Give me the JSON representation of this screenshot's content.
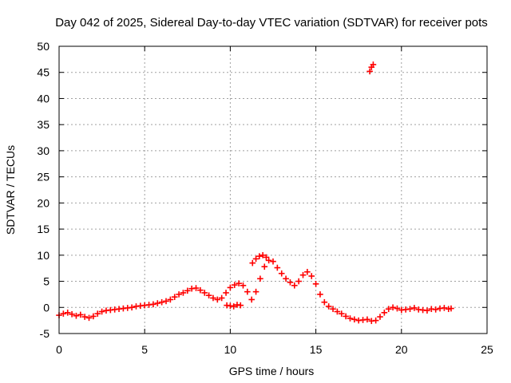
{
  "chart_data": {
    "type": "scatter",
    "title": "Day 042 of 2025, Sidereal Day-to-day VTEC variation (SDTVAR) for receiver pots",
    "xlabel": "GPS time / hours",
    "ylabel": "SDTVAR / TECUs",
    "xlim": [
      0,
      25
    ],
    "ylim": [
      -5,
      50
    ],
    "xticks": [
      0,
      5,
      10,
      15,
      20,
      25
    ],
    "yticks": [
      -5,
      0,
      5,
      10,
      15,
      20,
      25,
      30,
      35,
      40,
      45,
      50
    ],
    "grid": true,
    "point_color": "#ff0000",
    "marker": "plus",
    "series": [
      {
        "name": "SDTVAR",
        "x": [
          0.0,
          0.25,
          0.5,
          0.75,
          1.0,
          1.25,
          1.5,
          1.75,
          2.0,
          2.25,
          2.5,
          2.75,
          3.0,
          3.25,
          3.5,
          3.75,
          4.0,
          4.25,
          4.5,
          4.75,
          5.0,
          5.25,
          5.5,
          5.75,
          6.0,
          6.25,
          6.5,
          6.75,
          7.0,
          7.25,
          7.5,
          7.75,
          8.0,
          8.25,
          8.5,
          8.75,
          9.0,
          9.25,
          9.5,
          9.75,
          10.0,
          10.25,
          10.5,
          10.75,
          11.0,
          11.25,
          11.5,
          11.75,
          12.0,
          12.25,
          12.5,
          12.75,
          13.0,
          13.25,
          13.5,
          13.75,
          14.0,
          14.25,
          14.5,
          14.75,
          15.0,
          15.25,
          15.5,
          15.75,
          16.0,
          16.25,
          16.5,
          16.75,
          17.0,
          17.25,
          17.5,
          17.75,
          18.0,
          18.25,
          18.5,
          18.75,
          19.0,
          19.25,
          19.5,
          19.75,
          20.0,
          20.25,
          20.5,
          20.75,
          21.0,
          21.25,
          21.5,
          21.75,
          22.0,
          22.25,
          22.5,
          22.75,
          22.9,
          18.15,
          18.25,
          18.35,
          9.8,
          10.0,
          10.2,
          10.4,
          10.6,
          11.3,
          11.5,
          11.7,
          11.9,
          12.1
        ],
        "y": [
          -1.5,
          -1.2,
          -1.0,
          -1.3,
          -1.6,
          -1.4,
          -1.8,
          -2.0,
          -1.7,
          -1.2,
          -0.8,
          -0.6,
          -0.5,
          -0.4,
          -0.3,
          -0.2,
          -0.1,
          0.0,
          0.2,
          0.3,
          0.4,
          0.5,
          0.6,
          0.8,
          1.0,
          1.2,
          1.5,
          2.0,
          2.5,
          2.8,
          3.2,
          3.6,
          3.7,
          3.3,
          2.8,
          2.3,
          1.8,
          1.5,
          1.8,
          2.8,
          3.8,
          4.3,
          4.6,
          4.2,
          3.0,
          1.5,
          3.0,
          5.5,
          7.8,
          9.0,
          8.8,
          7.6,
          6.5,
          5.5,
          4.8,
          4.2,
          5.0,
          6.2,
          6.8,
          6.0,
          4.5,
          2.5,
          1.0,
          0.2,
          -0.3,
          -0.8,
          -1.2,
          -1.7,
          -2.1,
          -2.3,
          -2.5,
          -2.4,
          -2.3,
          -2.6,
          -2.5,
          -1.8,
          -1.0,
          -0.3,
          0.0,
          -0.2,
          -0.5,
          -0.4,
          -0.3,
          -0.1,
          -0.4,
          -0.5,
          -0.6,
          -0.3,
          -0.4,
          -0.2,
          -0.1,
          -0.3,
          -0.2,
          45.2,
          46.0,
          46.5,
          0.4,
          0.3,
          0.2,
          0.5,
          0.4,
          8.5,
          9.3,
          9.8,
          10.0,
          9.6
        ]
      }
    ]
  }
}
